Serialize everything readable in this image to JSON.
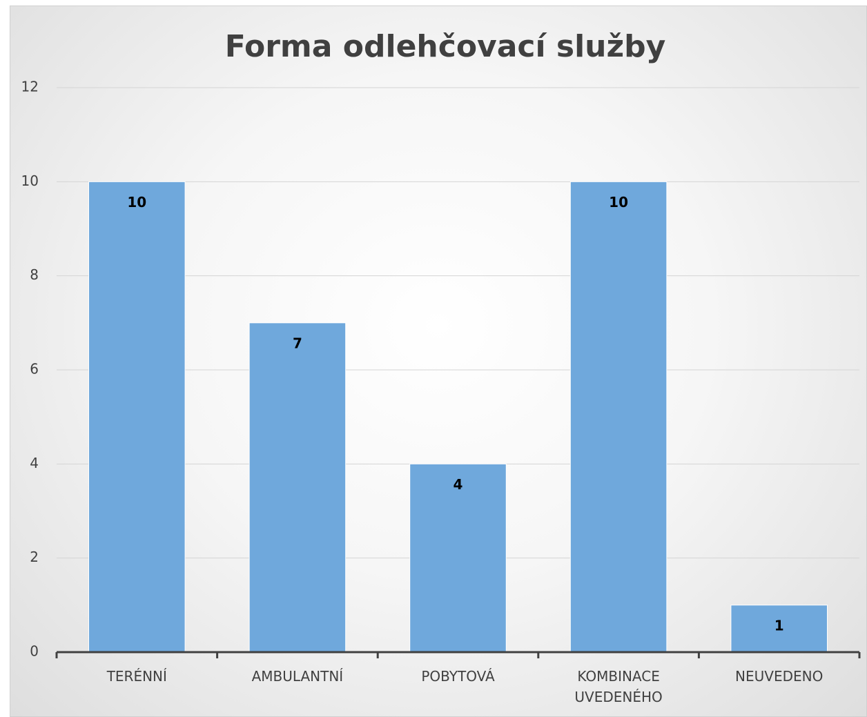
{
  "chart_data": {
    "type": "bar",
    "title": "Forma odlehčovací služby",
    "categories": [
      "TERÉNNÍ",
      "AMBULANTNÍ",
      "POBYTOVÁ",
      "KOMBINACE UVEDENÉHO",
      "NEUVEDENO"
    ],
    "values": [
      10,
      7,
      4,
      10,
      1
    ],
    "color": "#6fa8dc",
    "ylim": [
      0,
      12
    ],
    "yticks": [
      0,
      2,
      4,
      6,
      8,
      10,
      12
    ],
    "grid": true
  }
}
